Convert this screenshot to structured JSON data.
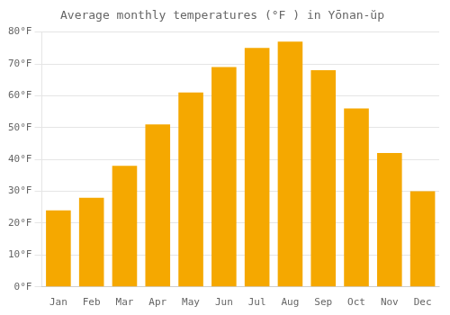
{
  "chart_data": {
    "type": "bar",
    "title": "Average monthly temperatures (°F ) in Yōnan-ŭp",
    "categories": [
      "Jan",
      "Feb",
      "Mar",
      "Apr",
      "May",
      "Jun",
      "Jul",
      "Aug",
      "Sep",
      "Oct",
      "Nov",
      "Dec"
    ],
    "values": [
      24,
      28,
      38,
      51,
      61,
      69,
      75,
      77,
      68,
      56,
      42,
      30
    ],
    "color": "#F5A800",
    "ylim": [
      0,
      80
    ],
    "yticks": [
      {
        "value": 0,
        "label": "0°F"
      },
      {
        "value": 10,
        "label": "10°F"
      },
      {
        "value": 20,
        "label": "20°F"
      },
      {
        "value": 30,
        "label": "30°F"
      },
      {
        "value": 40,
        "label": "40°F"
      },
      {
        "value": 50,
        "label": "50°F"
      },
      {
        "value": 60,
        "label": "60°F"
      },
      {
        "value": 70,
        "label": "70°F"
      },
      {
        "value": 80,
        "label": "80°F"
      }
    ],
    "grid": true
  }
}
